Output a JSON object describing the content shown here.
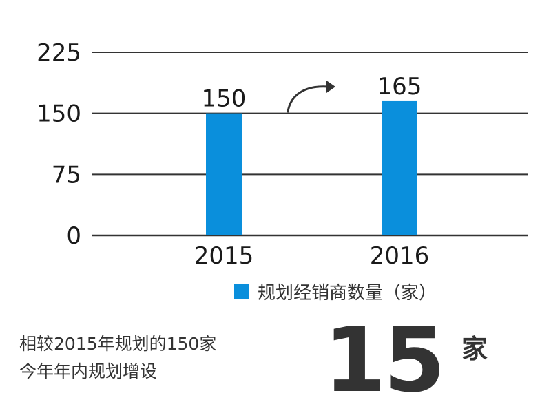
{
  "chart_data": {
    "type": "bar",
    "categories": [
      "2015",
      "2016"
    ],
    "series": [
      {
        "name": "规划经销商数量（家）",
        "values": [
          150,
          165
        ]
      }
    ],
    "ylim": [
      0,
      225
    ],
    "yticks": [
      0,
      75,
      150,
      225
    ],
    "grid": true,
    "legend": "bottom-right",
    "bar_color": "#0a8fdc"
  },
  "legend": {
    "label": "规划经销商数量（家）"
  },
  "annotation": {
    "line1": "相较2015年规划的150家",
    "line2": "今年年内规划增设",
    "number": "15",
    "unit": "家"
  }
}
